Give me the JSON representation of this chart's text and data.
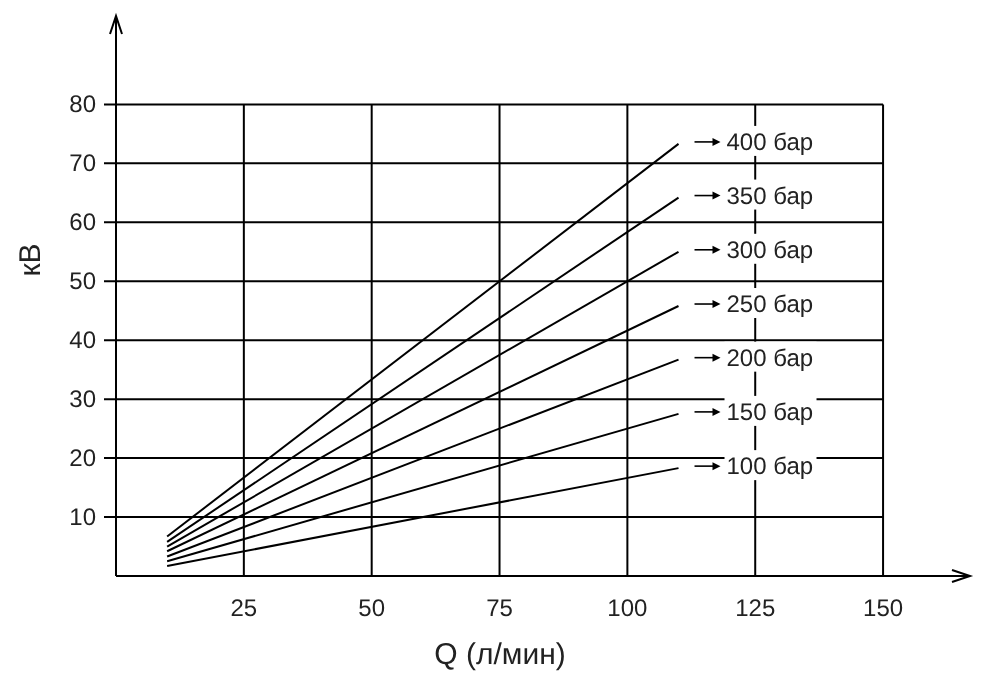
{
  "chart_data": {
    "type": "line",
    "xlabel": "Q (л/мин)",
    "ylabel": "кВ",
    "xlim": [
      0,
      167
    ],
    "ylim": [
      0,
      95
    ],
    "xticks": [
      25,
      50,
      75,
      100,
      125,
      150
    ],
    "yticks": [
      10,
      20,
      30,
      40,
      50,
      60,
      70,
      80
    ],
    "grid": true,
    "legend": "right",
    "x": [
      10,
      110
    ],
    "series": [
      {
        "name": "400 бар",
        "color": "#000000",
        "values": [
          6.7,
          73.3
        ]
      },
      {
        "name": "350 бар",
        "color": "#000000",
        "values": [
          5.8,
          64.2
        ]
      },
      {
        "name": "300 бар",
        "color": "#000000",
        "values": [
          5,
          55
        ]
      },
      {
        "name": "250 бар",
        "color": "#000000",
        "values": [
          4.2,
          45.8
        ]
      },
      {
        "name": "200 бар",
        "color": "#000000",
        "values": [
          3.3,
          36.7
        ]
      },
      {
        "name": "150 бар",
        "color": "#000000",
        "values": [
          2.5,
          27.5
        ]
      },
      {
        "name": "100 бар",
        "color": "#000000",
        "values": [
          1.7,
          18.3
        ]
      }
    ]
  }
}
